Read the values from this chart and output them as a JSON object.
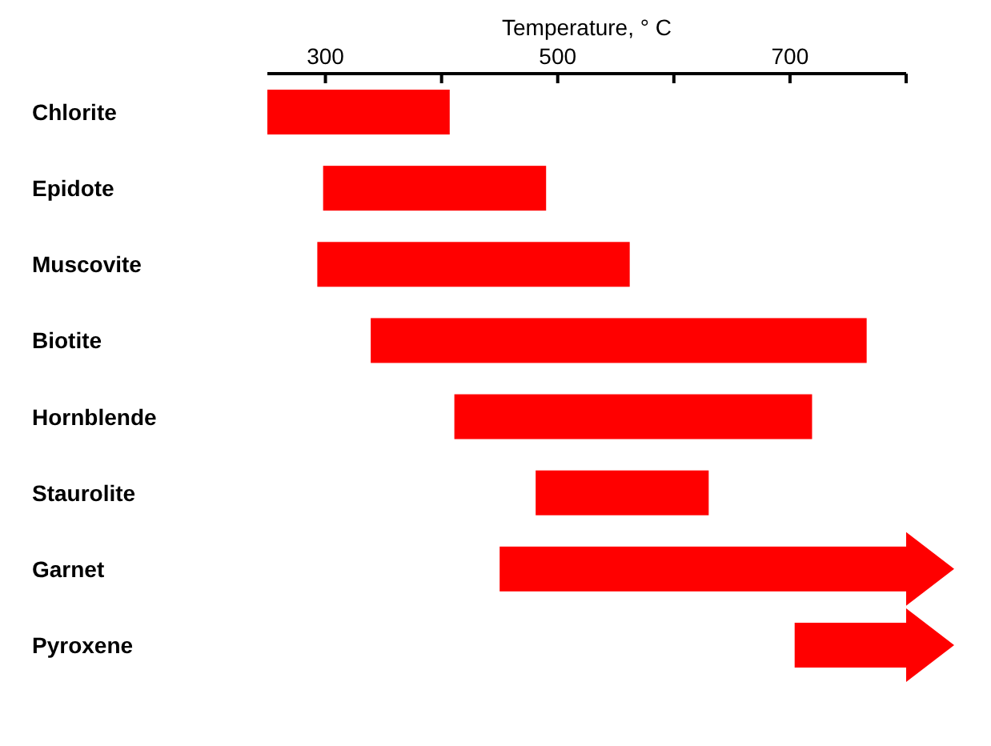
{
  "chart_data": {
    "type": "bar",
    "orientation": "horizontal",
    "xlabel": "Temperature, ° C",
    "categories": [
      "Chlorite",
      "Epidote",
      "Muscovite",
      "Biotite",
      "Hornblende",
      "Staurolite",
      "Garnet",
      "Pyroxene"
    ],
    "base": [
      250,
      298,
      293,
      339,
      411,
      481,
      450,
      704
    ],
    "values": [
      157,
      192,
      269,
      427,
      308,
      149,
      350,
      96
    ],
    "color": "#ff0000",
    "xlim": [
      250,
      800
    ],
    "xticks": [
      300,
      {
        "value": 400,
        "label": null
      },
      500,
      {
        "value": 600,
        "label": null
      },
      700,
      {
        "value": 800,
        "label": null
      }
    ]
  }
}
